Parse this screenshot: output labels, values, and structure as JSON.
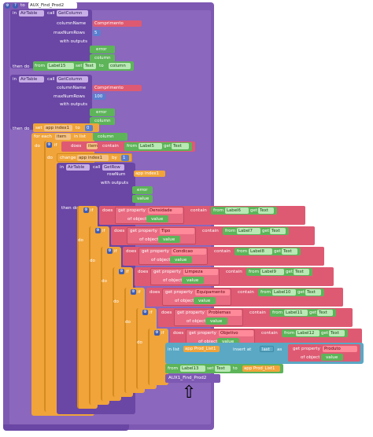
{
  "colors": {
    "purple": "#7e59b3",
    "dark_purple": "#6a46a5",
    "green": "#5db459",
    "orange": "#f0a43a",
    "pink": "#de5a72",
    "red_pill": "#ff8a99",
    "blue": "#5aa8c4",
    "math_blue": "#5a7fd0"
  },
  "proc": {
    "to": "to",
    "name": "AUX_Find_Prod2",
    "do": "do"
  },
  "call1": {
    "in": "in",
    "component": "AirTable",
    "call": "call",
    "method": "GetColumn",
    "columnName": "columnName",
    "column_value": "Comprimento",
    "maxNumRows": "maxNumRows",
    "max_value": "5",
    "with_outputs": "with outputs",
    "error": "error",
    "column": "column"
  },
  "then1": {
    "then_do": "then do",
    "from": "from",
    "label": "Label15",
    "set": "set",
    "prop": "Text",
    "to": "to",
    "column": "column"
  },
  "call2": {
    "in": "in",
    "component": "AirTable",
    "call": "call",
    "method": "GetColumn",
    "columnName": "columnName",
    "column_value": "Comprimento",
    "maxNumRows": "maxNumRows",
    "max_value": "100",
    "with_outputs": "with outputs",
    "error": "error",
    "column": "column"
  },
  "then2": {
    "then_do": "then do",
    "set": "set",
    "var": "app index1",
    "to": "to",
    "value": "0"
  },
  "foreach": {
    "for_each": "for each",
    "item": "item",
    "in_list": "in list",
    "list": "column"
  },
  "if1": {
    "do": "do",
    "if": "if",
    "does": "does",
    "item": "item",
    "contain": "contain",
    "from": "from",
    "label": "Label5",
    "get": "get",
    "prop": "Text"
  },
  "change": {
    "do": "do",
    "change": "change",
    "var": "app index1",
    "by": "by",
    "value": "1"
  },
  "getrow": {
    "in": "in",
    "component": "AirTable",
    "call": "call",
    "method": "GetRow",
    "rowNum": "rowNum",
    "rowNum_value": "app index1",
    "with_outputs": "with outputs",
    "error": "error",
    "value": "value"
  },
  "then3": {
    "then_do": "then do"
  },
  "conditions": [
    {
      "key": "Densidade",
      "label": "Label6"
    },
    {
      "key": "Tipo",
      "label": "Label7"
    },
    {
      "key": "Condicao",
      "label": "Label8"
    },
    {
      "key": "Limpeza",
      "label": "Label9"
    },
    {
      "key": "Equipamento",
      "label": "Label10"
    },
    {
      "key": "Problemas",
      "label": "Label11"
    },
    {
      "key": "Objetivo",
      "label": "Label12"
    }
  ],
  "cond_words": {
    "if": "if",
    "do": "do",
    "does": "does",
    "get_property": "get property",
    "of_object": "of object",
    "value": "value",
    "contain": "contain",
    "from": "from",
    "get": "get",
    "prop": "Text"
  },
  "insert": {
    "in_list": "in list",
    "list": "app Prod_List1",
    "insert_at": "insert at",
    "position": "last",
    "as": "as",
    "get_property": "get property",
    "key": "Produto",
    "of_object": "of object",
    "value": "value"
  },
  "final_set": {
    "from": "from",
    "label": "Label13",
    "set": "set",
    "prop": "Text",
    "to": "to",
    "value": "app Prod_List1"
  },
  "call_proc": {
    "name": "AUX1_Find_Prod2"
  },
  "arrow_glyph": "⇧"
}
